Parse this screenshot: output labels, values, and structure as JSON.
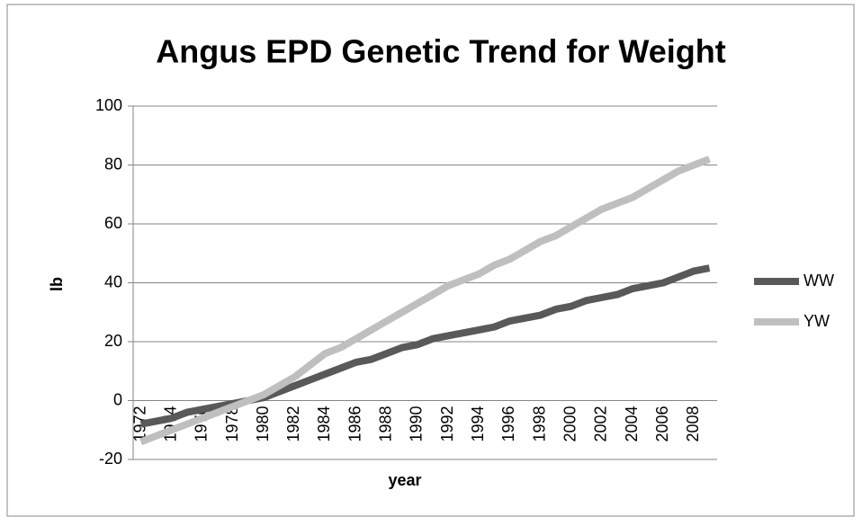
{
  "chart_data": {
    "type": "line",
    "title": "Angus EPD Genetic Trend for Weight",
    "x_label": "year",
    "y_label": "lb",
    "categories": [
      "1972",
      null,
      "1974",
      null,
      "1976",
      null,
      "1978",
      null,
      "1980",
      null,
      "1982",
      null,
      "1984",
      null,
      "1986",
      null,
      "1988",
      null,
      "1990",
      null,
      "1992",
      null,
      "1994",
      null,
      "1996",
      null,
      "1998",
      null,
      "2000",
      null,
      "2002",
      null,
      "2004",
      null,
      "2006",
      null,
      "2008",
      null
    ],
    "series": [
      {
        "name": "WW",
        "color": "#595959",
        "values": [
          -8,
          -7,
          -6,
          -4,
          -3,
          -2,
          -1,
          0,
          1,
          3,
          5,
          7,
          9,
          11,
          13,
          14,
          16,
          18,
          19,
          21,
          22,
          23,
          24,
          25,
          27,
          28,
          29,
          31,
          32,
          34,
          35,
          36,
          38,
          39,
          40,
          42,
          44,
          45
        ]
      },
      {
        "name": "YW",
        "color": "#bfbfbf",
        "values": [
          -14,
          -12,
          -10,
          -8,
          -6,
          -4,
          -2,
          0,
          2,
          5,
          8,
          12,
          16,
          18,
          21,
          24,
          27,
          30,
          33,
          36,
          39,
          41,
          43,
          46,
          48,
          51,
          54,
          56,
          59,
          62,
          65,
          67,
          69,
          72,
          75,
          78,
          80,
          82
        ]
      }
    ],
    "ylim": [
      -20,
      100
    ],
    "yticks": [
      -20,
      0,
      20,
      40,
      60,
      80,
      100
    ],
    "grid": true,
    "legend": "right"
  }
}
